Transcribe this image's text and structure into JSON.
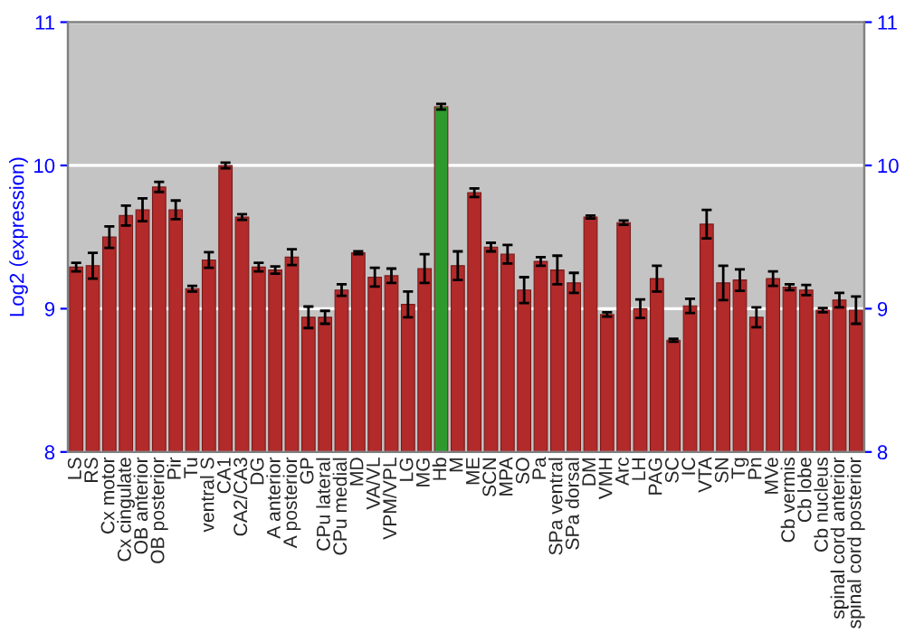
{
  "chart_data": {
    "type": "bar",
    "ylabel": "Log2 (expression)",
    "categories": [
      "LS",
      "RS",
      "Cx motor",
      "Cx cingulate",
      "OB anterior",
      "OB posterior",
      "Pir",
      "Tu",
      "ventral S",
      "CA1",
      "CA2/CA3",
      "DG",
      "A anterior",
      "A posterior",
      "GP",
      "CPu lateral",
      "CPu medial",
      "MD",
      "VA/VL",
      "VPM/VPL",
      "LG",
      "MG",
      "Hb",
      "M",
      "ME",
      "SCN",
      "MPA",
      "SO",
      "Pa",
      "SPa ventral",
      "SPa dorsal",
      "DM",
      "VMH",
      "Arc",
      "LH",
      "PAG",
      "SC",
      "IC",
      "VTA",
      "SN",
      "Tg",
      "Pn",
      "MVe",
      "Cb vermis",
      "Cb lobe",
      "Cb nucleus",
      "spinal cord anterior",
      "spinal cord posterior"
    ],
    "values": [
      9.29,
      9.3,
      9.5,
      9.65,
      9.69,
      9.85,
      9.69,
      9.14,
      9.34,
      10.0,
      9.64,
      9.29,
      9.27,
      9.36,
      8.94,
      8.94,
      9.13,
      9.39,
      9.22,
      9.23,
      9.03,
      9.28,
      10.41,
      9.3,
      9.81,
      9.43,
      9.38,
      9.13,
      9.33,
      9.27,
      9.18,
      9.64,
      8.96,
      9.6,
      9.0,
      9.21,
      8.78,
      9.02,
      9.59,
      9.18,
      9.2,
      8.94,
      9.21,
      9.15,
      9.13,
      8.99,
      9.06,
      8.99
    ],
    "errors": [
      0.03,
      0.09,
      0.075,
      0.07,
      0.08,
      0.035,
      0.065,
      0.02,
      0.055,
      0.02,
      0.02,
      0.03,
      0.025,
      0.055,
      0.075,
      0.045,
      0.04,
      0.01,
      0.065,
      0.05,
      0.09,
      0.1,
      0.02,
      0.1,
      0.03,
      0.03,
      0.065,
      0.09,
      0.03,
      0.1,
      0.07,
      0.01,
      0.015,
      0.015,
      0.065,
      0.09,
      0.01,
      0.05,
      0.1,
      0.12,
      0.075,
      0.07,
      0.05,
      0.02,
      0.035,
      0.015,
      0.05,
      0.095
    ],
    "colors": [
      "#b22a2a",
      "#b22a2a",
      "#b22a2a",
      "#b22a2a",
      "#b22a2a",
      "#b22a2a",
      "#b22a2a",
      "#b22a2a",
      "#b22a2a",
      "#b22a2a",
      "#b22a2a",
      "#b22a2a",
      "#b22a2a",
      "#b22a2a",
      "#b22a2a",
      "#b22a2a",
      "#b22a2a",
      "#b22a2a",
      "#b22a2a",
      "#b22a2a",
      "#b22a2a",
      "#b22a2a",
      "#2e9a2e",
      "#b22a2a",
      "#b22a2a",
      "#b22a2a",
      "#b22a2a",
      "#b22a2a",
      "#b22a2a",
      "#b22a2a",
      "#b22a2a",
      "#b22a2a",
      "#b22a2a",
      "#b22a2a",
      "#b22a2a",
      "#b22a2a",
      "#b22a2a",
      "#b22a2a",
      "#b22a2a",
      "#b22a2a",
      "#b22a2a",
      "#b22a2a",
      "#b22a2a",
      "#b22a2a",
      "#b22a2a",
      "#b22a2a",
      "#b22a2a",
      "#b22a2a"
    ],
    "ylim": [
      8,
      11
    ],
    "yticks": [
      8,
      9,
      10,
      11
    ],
    "y2lim": [
      8,
      11
    ],
    "y2ticks": [
      8,
      9,
      10,
      11
    ],
    "grid": "y"
  }
}
